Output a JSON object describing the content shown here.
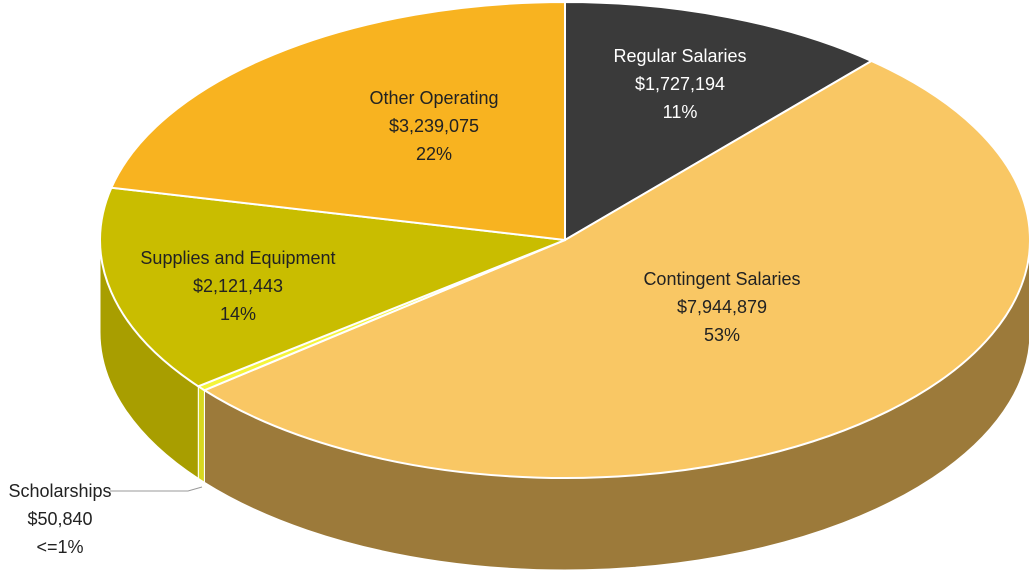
{
  "chart_data": {
    "type": "pie3d",
    "categories": [
      "Regular Salaries",
      "Contingent Salaries",
      "Scholarships",
      "Supplies and Equipment",
      "Other Operating"
    ],
    "values": [
      1727194,
      7944879,
      50840,
      2121443,
      3239075
    ],
    "value_labels": [
      "$1,727,194",
      "$7,944,879",
      "$50,840",
      "$2,121,443",
      "$3,239,075"
    ],
    "percent_labels": [
      "11%",
      "53%",
      "<=1%",
      "14%",
      "22%"
    ],
    "colors": [
      "#3a3a3a",
      "#f9c764",
      "#f4f43a",
      "#c9bd00",
      "#f8b320"
    ],
    "side_colors": [
      "#262626",
      "#9c7a3a",
      "#d8d820",
      "#a89e00",
      "#b78418"
    ]
  }
}
